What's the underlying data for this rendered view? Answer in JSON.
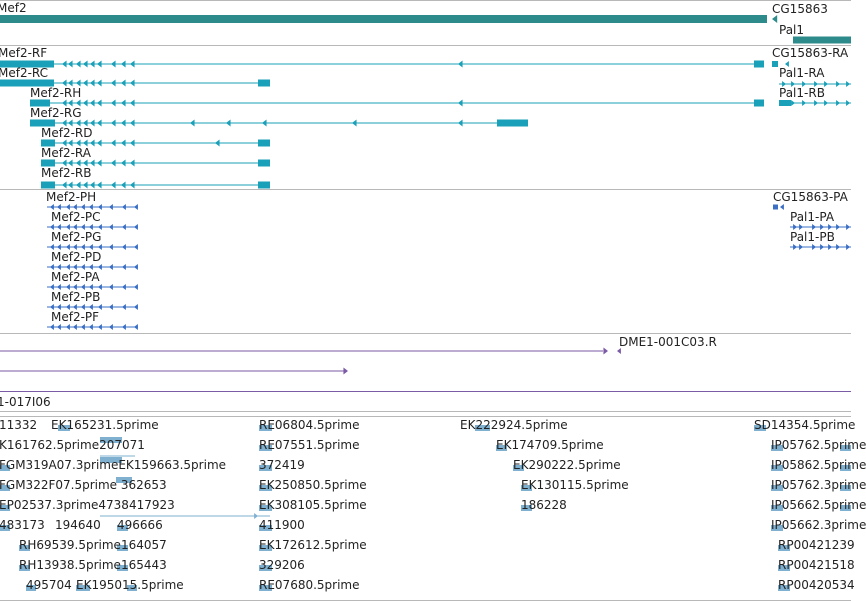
{
  "colors": {
    "gene": "#2e8b8c",
    "transcript_teal": "#1aa0b8",
    "transcript_blue": "#3a6fc4",
    "purple": "#7b5aa6",
    "est": "#7fb0d0",
    "divider": "#b8b8b8"
  },
  "genes": [
    {
      "label": "Mef2"
    },
    {
      "label": "CG15863"
    },
    {
      "label": "Pal1"
    }
  ],
  "transcripts_teal": [
    {
      "label": "Mef2-RF"
    },
    {
      "label": "Mef2-RC"
    },
    {
      "label": "Mef2-RH"
    },
    {
      "label": "Mef2-RG"
    },
    {
      "label": "Mef2-RD"
    },
    {
      "label": "Mef2-RA"
    },
    {
      "label": "Mef2-RB"
    },
    {
      "label": "CG15863-RA"
    },
    {
      "label": "Pal1-RA"
    },
    {
      "label": "Pal1-RB"
    }
  ],
  "proteins": [
    {
      "label": "Mef2-PH"
    },
    {
      "label": "Mef2-PC"
    },
    {
      "label": "Mef2-PG"
    },
    {
      "label": "Mef2-PD"
    },
    {
      "label": "Mef2-PA"
    },
    {
      "label": "Mef2-PB"
    },
    {
      "label": "Mef2-PF"
    },
    {
      "label": "CG15863-PA"
    },
    {
      "label": "Pal1-PA"
    },
    {
      "label": "Pal1-PB"
    }
  ],
  "clones": [
    {
      "label": "DME1-001C03.R"
    },
    {
      "label": "1-017I06"
    }
  ],
  "ests": [
    {
      "label": "11332"
    },
    {
      "label": "EK165231.5prime"
    },
    {
      "label": "RE06804.5prime"
    },
    {
      "label": "EK222924.5prime"
    },
    {
      "label": "SD14354.5prime"
    },
    {
      "label": "K161762.5prime207071"
    },
    {
      "label": "RE07551.5prime"
    },
    {
      "label": "EK174709.5prime"
    },
    {
      "label": "IP05762.5prime"
    },
    {
      "label": "FGM319A07.3primeEK159663.5prime"
    },
    {
      "label": "372419"
    },
    {
      "label": "EK290222.5prime"
    },
    {
      "label": "IP05862.5prime"
    },
    {
      "label": "FGM322F07.5prime 362653"
    },
    {
      "label": "EK250850.5prime"
    },
    {
      "label": "EK130115.5prime"
    },
    {
      "label": "IP05762.3prime"
    },
    {
      "label": "EP02537.3prime4738417923"
    },
    {
      "label": "EK308105.5prime"
    },
    {
      "label": "186228"
    },
    {
      "label": "IP05662.5prime"
    },
    {
      "label": "483173"
    },
    {
      "label": "194640"
    },
    {
      "label": "496666"
    },
    {
      "label": "411900"
    },
    {
      "label": "IP05662.3prime"
    },
    {
      "label": "RH69539.5prime164057"
    },
    {
      "label": "EK172612.5prime"
    },
    {
      "label": "RP00421239"
    },
    {
      "label": "RH13938.5prime165443"
    },
    {
      "label": "329206"
    },
    {
      "label": "RP00421518"
    },
    {
      "label": "495704"
    },
    {
      "label": "EK195015.5prime"
    },
    {
      "label": "RE07680.5prime"
    },
    {
      "label": "RP00420534"
    }
  ]
}
